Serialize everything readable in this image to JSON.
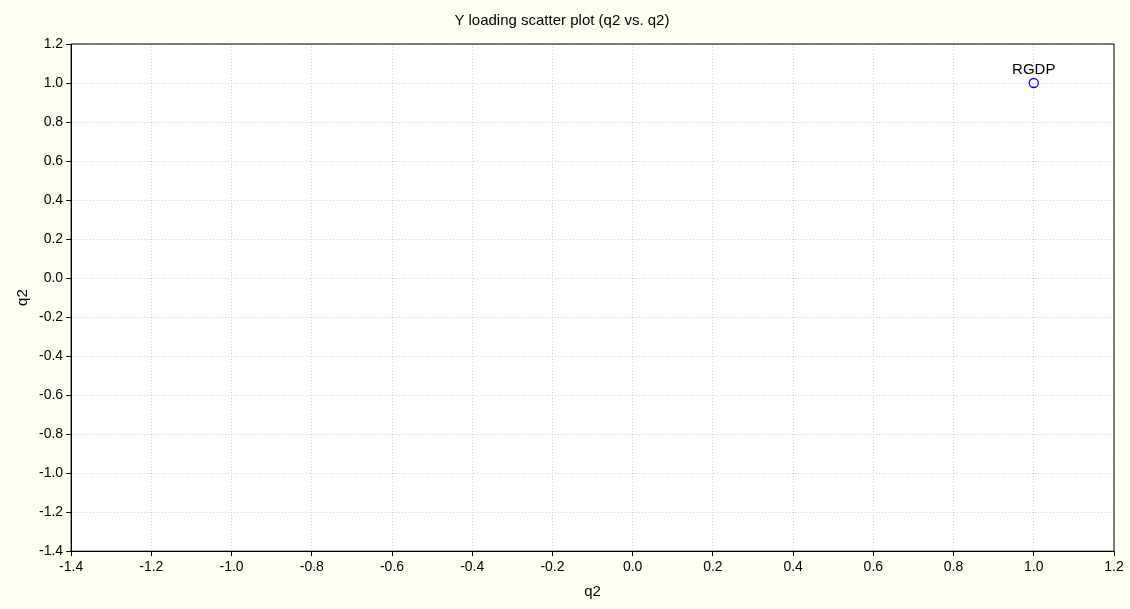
{
  "chart_data": {
    "type": "scatter",
    "title": "Y loading scatter plot (q2 vs. q2)",
    "xlabel": "q2",
    "ylabel": "q2",
    "series": [
      {
        "color": "#0000ff",
        "x": [
          1.0
        ],
        "values": [
          1.0
        ]
      }
    ],
    "annotations": [
      {
        "text": "RGDP",
        "x": 1.0,
        "y": 1.0
      }
    ],
    "xlim": [
      -1.4,
      1.2
    ],
    "ylim": [
      -1.4,
      1.2
    ],
    "xticks": [
      {
        "value": -1.4,
        "label": "-1.4"
      },
      {
        "value": -1.2,
        "label": "-1.2"
      },
      {
        "value": -1.0,
        "label": "-1.0"
      },
      {
        "value": -0.8,
        "label": "-0.8"
      },
      {
        "value": -0.6,
        "label": "-0.6"
      },
      {
        "value": -0.4,
        "label": "-0.4"
      },
      {
        "value": -0.2,
        "label": "-0.2"
      },
      {
        "value": 0,
        "label": "0.0"
      },
      {
        "value": 0.2,
        "label": "0.2"
      },
      {
        "value": 0.4,
        "label": "0.4"
      },
      {
        "value": 0.6,
        "label": "0.6"
      },
      {
        "value": 0.8,
        "label": "0.8"
      },
      {
        "value": 1.0,
        "label": "1.0"
      },
      {
        "value": 1.2,
        "label": "1.2"
      }
    ],
    "yticks": [
      {
        "value": -1.4,
        "label": "-1.4"
      },
      {
        "value": -1.2,
        "label": "-1.2"
      },
      {
        "value": -1.0,
        "label": "-1.0"
      },
      {
        "value": -0.8,
        "label": "-0.8"
      },
      {
        "value": -0.6,
        "label": "-0.6"
      },
      {
        "value": -0.4,
        "label": "-0.4"
      },
      {
        "value": -0.2,
        "label": "-0.2"
      },
      {
        "value": 0,
        "label": "0.0"
      },
      {
        "value": 0.2,
        "label": "0.2"
      },
      {
        "value": 0.4,
        "label": "0.4"
      },
      {
        "value": 0.6,
        "label": "0.6"
      },
      {
        "value": 0.8,
        "label": "0.8"
      },
      {
        "value": 1.0,
        "label": "1.0"
      },
      {
        "value": 1.2,
        "label": "1.2"
      }
    ],
    "grid": true,
    "legend": false,
    "marker": "circle"
  }
}
